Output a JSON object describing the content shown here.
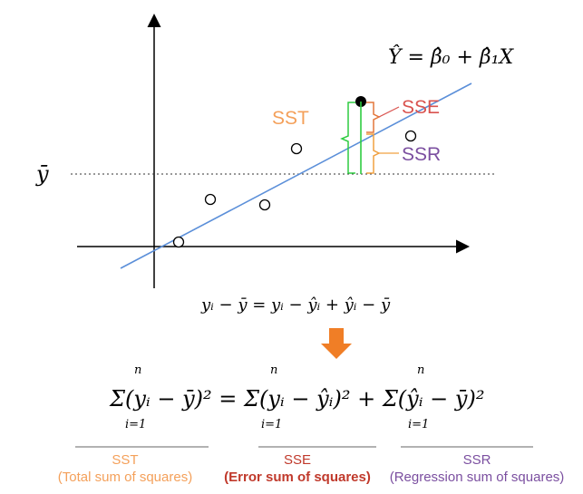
{
  "diagram": {
    "regression_equation": "Ŷ = β̂₀ + β̂₁X",
    "ybar_axis_label": "ȳ",
    "sst_label": "SST",
    "sse_label": "SSE",
    "ssr_label": "SSR",
    "deviation_equation": "yᵢ − ȳ  =  yᵢ − ŷᵢ  +  ŷᵢ − ȳ",
    "sum_equation": "Σ(yᵢ − ȳ)² = Σ(yᵢ − ŷᵢ)² + Σ(ŷᵢ − ȳ)²",
    "sum_upper": "n",
    "sum_lower": "i=1",
    "terms": [
      {
        "name": "SST",
        "desc": "(Total sum of squares)",
        "color": "#F4A05A"
      },
      {
        "name": "SSE",
        "desc": "(Error sum of squares)",
        "color": "#C0392B"
      },
      {
        "name": "SSR",
        "desc": "(Regression sum of squares)",
        "color": "#7B4FA0"
      }
    ],
    "colors": {
      "sst": "#F4A05A",
      "sse": "#D9534F",
      "ssr": "#7B4FA0",
      "regression_line": "#5B8FD9",
      "arrow": "#F07E26",
      "bracket_green": "#2ECC40",
      "bracket_orange": "#F0A040"
    }
  }
}
